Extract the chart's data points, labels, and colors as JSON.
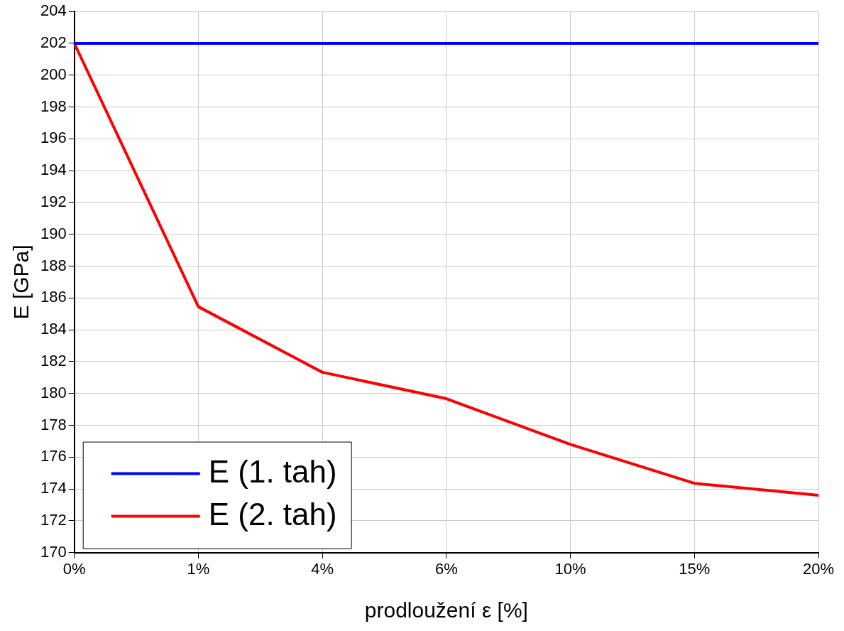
{
  "chart_data": {
    "type": "line",
    "xlabel": "prodloužení ε [%]",
    "ylabel": "E [GPa]",
    "categories": [
      "0%",
      "1%",
      "4%",
      "6%",
      "10%",
      "15%",
      "20%"
    ],
    "series": [
      {
        "name": "E (1. tah)",
        "color": "#0000ff",
        "values": [
          202,
          202,
          202,
          202,
          202,
          202,
          202
        ]
      },
      {
        "name": "E (2. tah)",
        "color": "#ff0000",
        "values": [
          202,
          185.45,
          181.33,
          179.67,
          176.8,
          174.35,
          173.6
        ]
      }
    ],
    "ylim": [
      170,
      204
    ],
    "yticks": [
      170,
      172,
      174,
      176,
      178,
      180,
      182,
      184,
      186,
      188,
      190,
      192,
      194,
      196,
      198,
      200,
      202,
      204
    ],
    "grid": true,
    "legend": "bottom left",
    "marker": "none",
    "line_style": "solid"
  }
}
